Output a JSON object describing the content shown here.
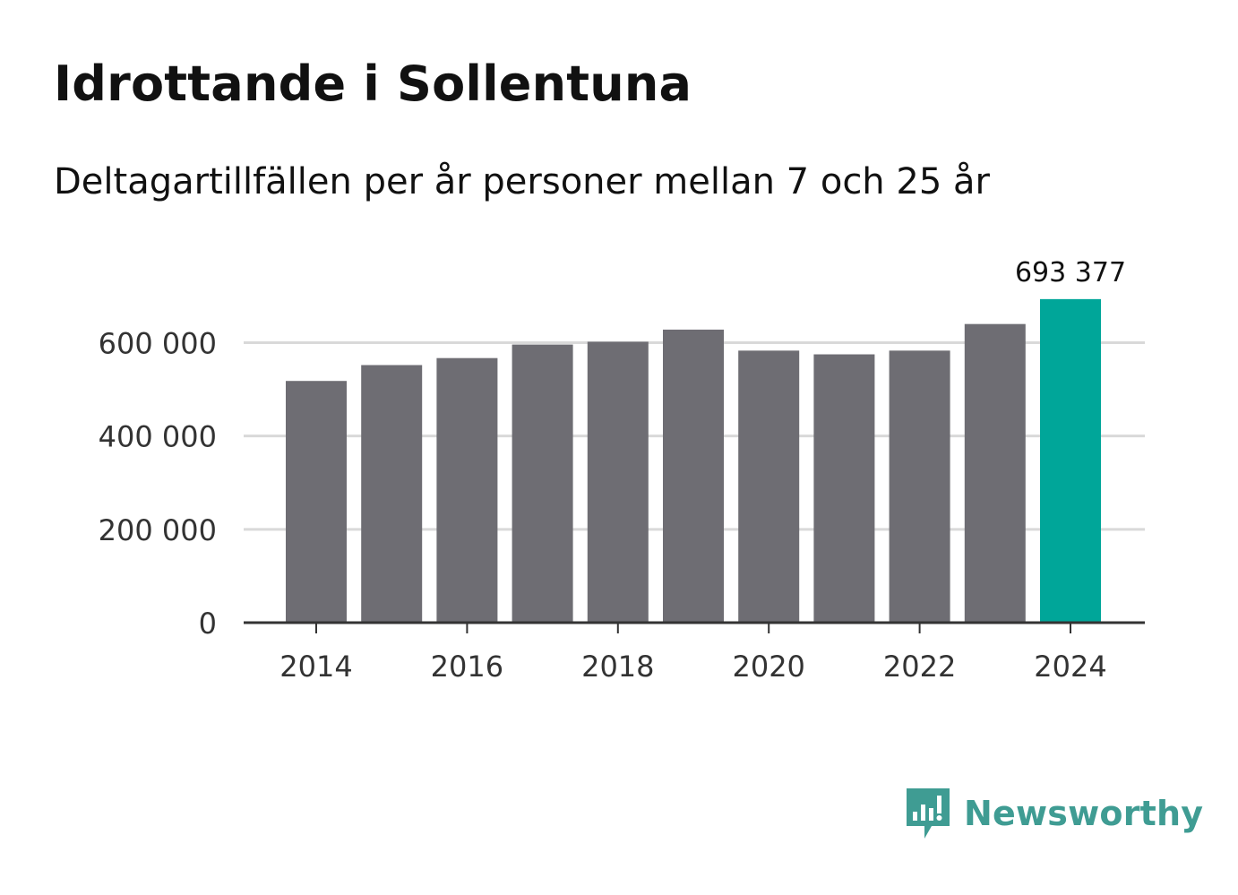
{
  "header": {
    "title": "Idrottande i Sollentuna",
    "subtitle": "Deltagartillfällen per år personer mellan 7 och 25 år"
  },
  "colors": {
    "bar": "#6e6d73",
    "highlight": "#00a699",
    "grid": "#d9d9d9",
    "axis": "#333333",
    "text": "#333333",
    "brand": "#3f9c93"
  },
  "brand": {
    "name": "Newsworthy",
    "icon": "newsworthy-chart-bubble-icon"
  },
  "chart_data": {
    "type": "bar",
    "title": "Idrottande i Sollentuna",
    "subtitle": "Deltagartillfällen per år personer mellan 7 och 25 år",
    "xlabel": "",
    "ylabel": "",
    "categories": [
      2014,
      2015,
      2016,
      2017,
      2018,
      2019,
      2020,
      2021,
      2022,
      2023,
      2024
    ],
    "values": [
      518000,
      552000,
      567000,
      596000,
      602000,
      628000,
      583000,
      575000,
      583000,
      640000,
      693377
    ],
    "highlight_index": 10,
    "highlight_label": "693 377",
    "ylim": [
      0,
      720000
    ],
    "yticks": [
      0,
      200000,
      400000,
      600000
    ],
    "ytick_labels": [
      "0",
      "200 000",
      "400 000",
      "600 000"
    ],
    "xticks": [
      2014,
      2016,
      2018,
      2020,
      2022,
      2024
    ],
    "xtick_labels": [
      "2014",
      "2016",
      "2018",
      "2020",
      "2022",
      "2024"
    ],
    "grid": true
  }
}
